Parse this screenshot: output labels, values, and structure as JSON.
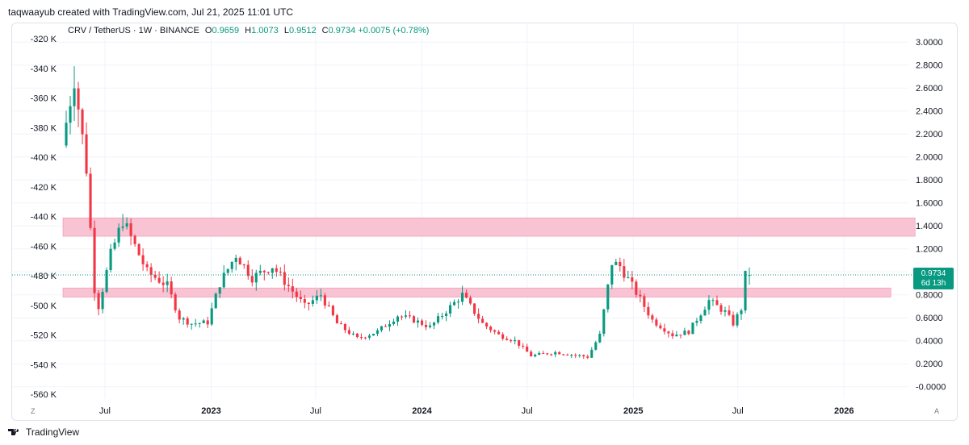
{
  "header": {
    "credit": "taqwaayub created with TradingView.com, Jul 21, 2025 11:01 UTC"
  },
  "legend": {
    "symbol": "CRV / TetherUS · 1W · BINANCE",
    "o_label": "O",
    "o_value": "0.9659",
    "h_label": "H",
    "h_value": "1.0073",
    "l_label": "L",
    "l_value": "0.9512",
    "c_label": "C",
    "c_value": "0.9734",
    "change": "+0.0075 (+0.78%)"
  },
  "price_tag": {
    "price": "0.9734",
    "countdown": "6d 13h"
  },
  "footer": {
    "brand": "TradingView"
  },
  "corners": {
    "left": "Z",
    "right": "A"
  },
  "colors": {
    "up": "#089981",
    "down": "#f23645",
    "zone": "#f8c3d3",
    "zone_border": "#f48fb1"
  },
  "chart_data": {
    "type": "candlestick",
    "title": "CRV / TetherUS · 1W · BINANCE",
    "right_axis": {
      "ticks": [
        "3.0000",
        "2.8000",
        "2.6000",
        "2.4000",
        "2.2000",
        "2.0000",
        "1.8000",
        "1.6000",
        "1.4000",
        "1.2000",
        "1.0000",
        "0.8000",
        "0.6000",
        "0.4000",
        "0.2000",
        "-0.0000"
      ],
      "range": [
        -0.03,
        3.1
      ]
    },
    "left_axis": {
      "ticks": [
        "-320 K",
        "-340 K",
        "-360 K",
        "-380 K",
        "-400 K",
        "-420 K",
        "-440 K",
        "-460 K",
        "-480 K",
        "-500 K",
        "-520 K",
        "-540 K",
        "-560 K"
      ]
    },
    "x_axis": {
      "ticks": [
        {
          "label": "Jul",
          "date": "2022-07-01",
          "bold": false
        },
        {
          "label": "2023",
          "date": "2023-01-01",
          "bold": true
        },
        {
          "label": "Jul",
          "date": "2023-07-01",
          "bold": false
        },
        {
          "label": "2024",
          "date": "2024-01-01",
          "bold": true
        },
        {
          "label": "Jul",
          "date": "2024-07-01",
          "bold": false
        },
        {
          "label": "2025",
          "date": "2025-01-01",
          "bold": true
        },
        {
          "label": "Jul",
          "date": "2025-07-01",
          "bold": false
        },
        {
          "label": "2026",
          "date": "2026-01-01",
          "bold": true
        }
      ]
    },
    "zones": [
      {
        "low": 1.31,
        "high": 1.47,
        "start": "2022-04-25",
        "end": "2026-05-04"
      },
      {
        "low": 0.78,
        "high": 0.86,
        "start": "2022-04-25",
        "end": "2026-03-23"
      }
    ],
    "last_price": 0.9734,
    "series": [
      {
        "name": "CRV / TetherUS",
        "anchor": [
          [
            "2022-04-25",
            2.3
          ],
          [
            "2022-05-09",
            2.7
          ],
          [
            "2022-05-30",
            1.9
          ],
          [
            "2022-06-13",
            0.85
          ],
          [
            "2022-06-20",
            0.7
          ],
          [
            "2022-07-11",
            1.15
          ],
          [
            "2022-08-01",
            1.45
          ],
          [
            "2022-08-15",
            1.3
          ],
          [
            "2022-09-12",
            1.0
          ],
          [
            "2022-10-17",
            0.88
          ],
          [
            "2022-11-07",
            0.6
          ],
          [
            "2022-11-28",
            0.55
          ],
          [
            "2022-12-26",
            0.56
          ],
          [
            "2023-01-16",
            0.9
          ],
          [
            "2023-02-13",
            1.15
          ],
          [
            "2023-03-13",
            0.95
          ],
          [
            "2023-04-17",
            1.05
          ],
          [
            "2023-06-12",
            0.7
          ],
          [
            "2023-07-10",
            0.8
          ],
          [
            "2023-08-07",
            0.55
          ],
          [
            "2023-09-11",
            0.42
          ],
          [
            "2023-10-16",
            0.48
          ],
          [
            "2023-11-20",
            0.62
          ],
          [
            "2023-12-18",
            0.58
          ],
          [
            "2024-01-15",
            0.52
          ],
          [
            "2024-03-11",
            0.8
          ],
          [
            "2024-04-15",
            0.55
          ],
          [
            "2024-05-13",
            0.45
          ],
          [
            "2024-06-10",
            0.4
          ],
          [
            "2024-07-08",
            0.27
          ],
          [
            "2024-08-19",
            0.3
          ],
          [
            "2024-10-14",
            0.26
          ],
          [
            "2024-11-04",
            0.45
          ],
          [
            "2024-11-25",
            1.08
          ],
          [
            "2024-12-09",
            1.05
          ],
          [
            "2025-01-06",
            0.82
          ],
          [
            "2025-02-03",
            0.58
          ],
          [
            "2025-03-10",
            0.45
          ],
          [
            "2025-04-07",
            0.48
          ],
          [
            "2025-05-12",
            0.75
          ],
          [
            "2025-06-09",
            0.65
          ],
          [
            "2025-06-23",
            0.55
          ],
          [
            "2025-07-07",
            0.68
          ],
          [
            "2025-07-14",
            0.97
          ]
        ]
      }
    ]
  }
}
